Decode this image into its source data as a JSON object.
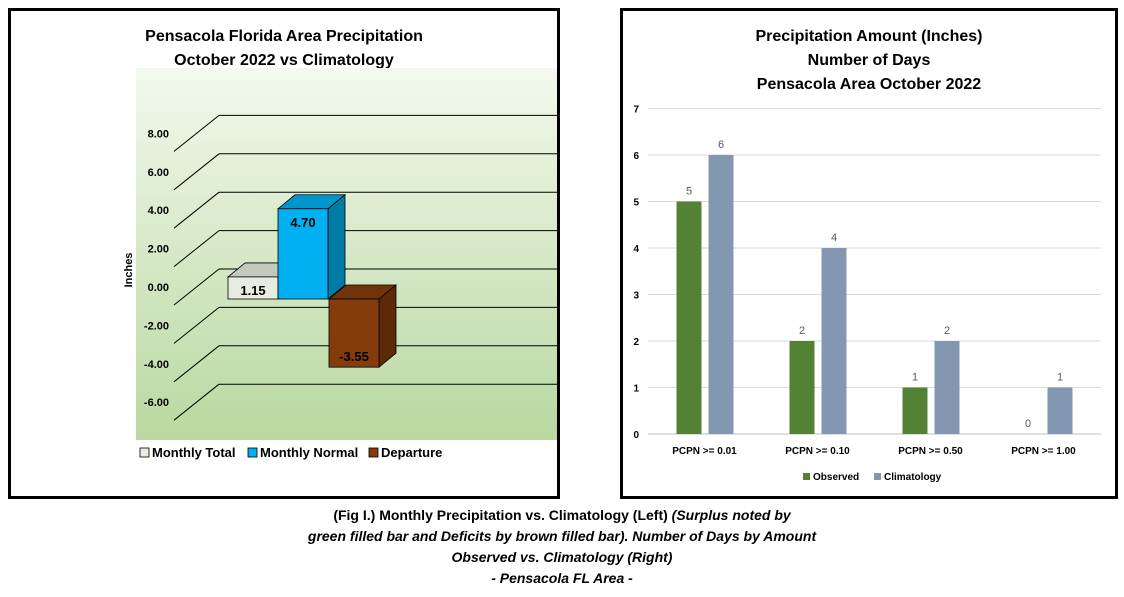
{
  "left_chart": {
    "title_lines": [
      "Pensacola Florida Area Precipitation",
      "October 2022 vs Climatology"
    ],
    "ylabel": "Inches",
    "colors": {
      "background_top": "#f3f9ee",
      "background_bottom": "#b9d8a0"
    },
    "legend": [
      {
        "label": "Monthly Total",
        "color": "#e6ecdf"
      },
      {
        "label": "Monthly Normal",
        "color": "#00b0f0"
      },
      {
        "label": "Departure",
        "color": "#843c0c"
      }
    ]
  },
  "right_chart": {
    "title_lines": [
      "Precipitation Amount (Inches)",
      "Number of Days",
      "Pensacola Area October 2022"
    ],
    "colors": {
      "observed": "#548235",
      "climatology": "#8497b0"
    }
  },
  "caption": {
    "line1_bold": "(Fig I.) Monthly Precipitation vs. Climatology (Left) ",
    "line1_italic": "(Surplus noted by",
    "line2": "green filled bar and Deficits by brown filled bar). Number of Days by Amount",
    "line3": "Observed vs. Climatology (Right)",
    "line4": "- Pensacola FL Area -"
  },
  "chart_data": [
    {
      "type": "bar",
      "title": "Pensacola Florida Area Precipitation October 2022 vs Climatology",
      "ylabel": "Inches",
      "xlabel": "",
      "ylim": [
        -6,
        8
      ],
      "yticks": [
        "-6.00",
        "-4.00",
        "-2.00",
        "0.00",
        "2.00",
        "4.00",
        "6.00",
        "8.00"
      ],
      "categories": [
        "Monthly Total",
        "Monthly Normal",
        "Departure"
      ],
      "values": [
        1.15,
        4.7,
        -3.55
      ],
      "data_labels": [
        "1.15",
        "4.70",
        "-3.55"
      ],
      "legend": "bottom",
      "grid": true
    },
    {
      "type": "bar",
      "title": "Precipitation Amount (Inches) Number of Days Pensacola Area October 2022",
      "xlabel": "",
      "ylabel": "",
      "ylim": [
        0,
        7
      ],
      "yticks": [
        "0",
        "1",
        "2",
        "3",
        "4",
        "5",
        "6",
        "7"
      ],
      "categories": [
        "PCPN >= 0.01",
        "PCPN >= 0.10",
        "PCPN >= 0.50",
        "PCPN >= 1.00"
      ],
      "series": [
        {
          "name": "Observed",
          "values": [
            5,
            2,
            1,
            0
          ]
        },
        {
          "name": "Climatology",
          "values": [
            6,
            4,
            2,
            1
          ]
        }
      ],
      "legend": "bottom",
      "grid": true
    }
  ]
}
